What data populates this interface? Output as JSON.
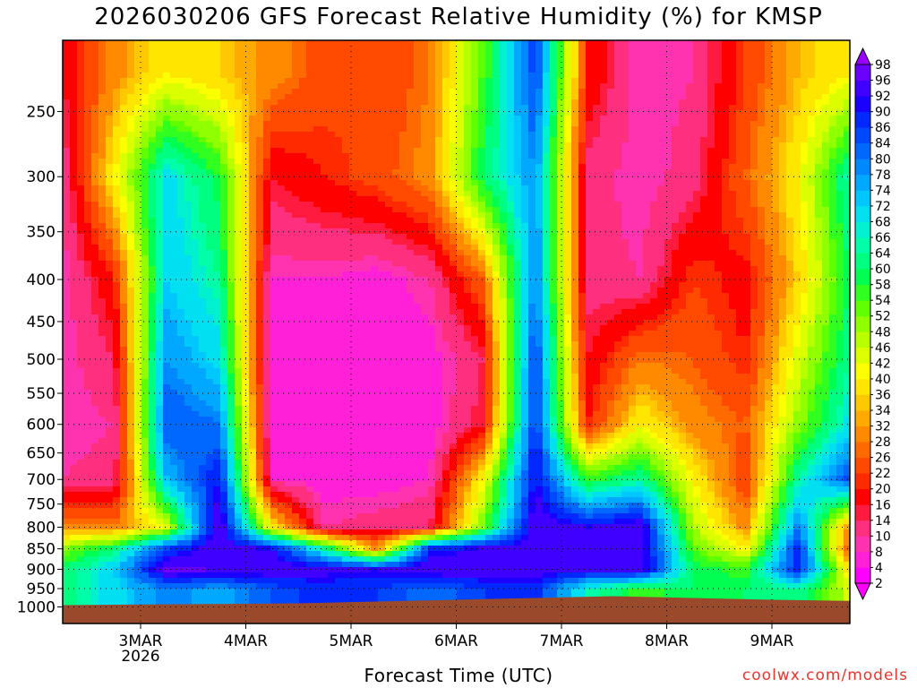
{
  "chart_data": {
    "type": "heatmap",
    "title": "2026030206 GFS Forecast Relative Humidity (%) for KMSP",
    "xlabel": "Forecast Time (UTC)",
    "ylabel": "",
    "y_axis": "pressure (hPa), log scale, inverted",
    "y_ticks": [
      250,
      300,
      350,
      400,
      450,
      500,
      550,
      600,
      650,
      700,
      750,
      800,
      850,
      900,
      950,
      1000
    ],
    "y_range": [
      1025,
      200
    ],
    "x_ticks": [
      {
        "label": "3MAR",
        "sublabel": "2026",
        "date": "2026-03-03 00Z"
      },
      {
        "label": "4MAR",
        "sublabel": "",
        "date": "2026-03-04 00Z"
      },
      {
        "label": "5MAR",
        "sublabel": "",
        "date": "2026-03-05 00Z"
      },
      {
        "label": "6MAR",
        "sublabel": "",
        "date": "2026-03-06 00Z"
      },
      {
        "label": "7MAR",
        "sublabel": "",
        "date": "2026-03-07 00Z"
      },
      {
        "label": "8MAR",
        "sublabel": "",
        "date": "2026-03-08 00Z"
      },
      {
        "label": "9MAR",
        "sublabel": "",
        "date": "2026-03-09 00Z"
      }
    ],
    "x_range": [
      "2026-03-02 06Z",
      "2026-03-09 18Z"
    ],
    "grid": true,
    "colorbar": {
      "placement": "right",
      "levels": [
        2,
        4,
        8,
        10,
        14,
        16,
        20,
        22,
        26,
        28,
        32,
        34,
        36,
        40,
        42,
        46,
        48,
        52,
        54,
        58,
        60,
        64,
        66,
        68,
        72,
        74,
        78,
        80,
        84,
        86,
        90,
        92,
        96,
        98
      ],
      "level_colors": [
        "#ff00ff",
        "#ff20d8",
        "#ff33b0",
        "#ff2f80",
        "#ff1a40",
        "#ff0000",
        "#ff2a00",
        "#ff4a00",
        "#ff6a00",
        "#ff8a00",
        "#ffaa00",
        "#ffc800",
        "#ffe600",
        "#fcff00",
        "#dcff00",
        "#b8ff00",
        "#90ff00",
        "#60ff00",
        "#30ff20",
        "#00ff50",
        "#00ff80",
        "#00ffa8",
        "#00f0d0",
        "#00e0f0",
        "#00c8ff",
        "#00a8ff",
        "#0088ff",
        "#0068ff",
        "#0048ff",
        "#0028ff",
        "#1a00ff",
        "#4000ff",
        "#6a00ff",
        "#9a00ff"
      ]
    },
    "ground_color": "#9a4a2a",
    "rh_field": {
      "note": "approximate RH (%) sampled from the plot; rows = pressure levels (hPa), columns = forecast times",
      "levels_hpa": [
        225,
        300,
        400,
        500,
        600,
        700,
        800,
        850,
        900,
        950
      ],
      "times": [
        "02/06Z",
        "02/18Z",
        "03/06Z",
        "03/18Z",
        "04/06Z",
        "04/18Z",
        "05/06Z",
        "05/18Z",
        "06/06Z",
        "06/18Z",
        "07/06Z",
        "07/18Z",
        "08/06Z",
        "08/18Z",
        "09/06Z",
        "09/18Z"
      ],
      "rh": [
        [
          16,
          30,
          40,
          36,
          30,
          24,
          22,
          28,
          54,
          86,
          20,
          8,
          10,
          22,
          34,
          40
        ],
        [
          10,
          40,
          70,
          58,
          16,
          20,
          24,
          30,
          60,
          78,
          12,
          8,
          12,
          26,
          40,
          66
        ],
        [
          8,
          20,
          72,
          64,
          8,
          8,
          6,
          10,
          26,
          80,
          12,
          10,
          22,
          18,
          36,
          60
        ],
        [
          8,
          14,
          78,
          70,
          6,
          6,
          4,
          6,
          14,
          86,
          16,
          28,
          26,
          20,
          44,
          64
        ],
        [
          8,
          10,
          84,
          80,
          6,
          6,
          4,
          6,
          16,
          88,
          20,
          40,
          30,
          26,
          50,
          70
        ],
        [
          10,
          12,
          74,
          90,
          8,
          6,
          6,
          8,
          40,
          92,
          56,
          64,
          40,
          22,
          64,
          86
        ],
        [
          30,
          28,
          44,
          98,
          40,
          10,
          12,
          14,
          52,
          96,
          92,
          96,
          48,
          30,
          80,
          28
        ],
        [
          50,
          62,
          86,
          96,
          92,
          64,
          30,
          88,
          94,
          96,
          96,
          96,
          54,
          40,
          88,
          22
        ],
        [
          60,
          72,
          98,
          96,
          96,
          94,
          92,
          96,
          96,
          96,
          94,
          96,
          60,
          56,
          90,
          36
        ],
        [
          62,
          70,
          80,
          76,
          84,
          88,
          86,
          82,
          86,
          88,
          66,
          56,
          60,
          60,
          64,
          44
        ]
      ]
    },
    "annotations": [
      "coolwx.com/models"
    ]
  },
  "watermark": "coolwx.com/models"
}
